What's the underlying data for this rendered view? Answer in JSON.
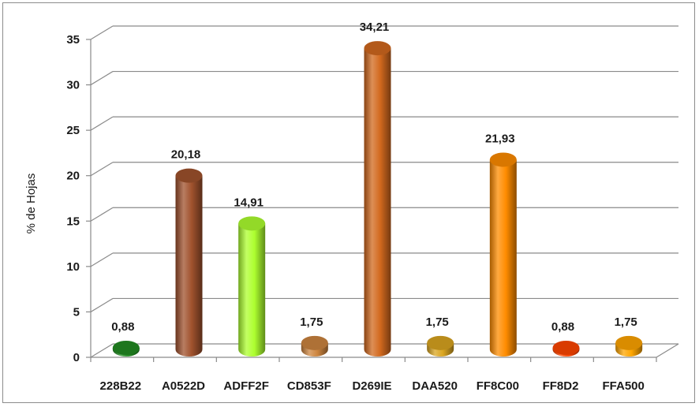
{
  "chart_data": {
    "type": "bar",
    "title": "",
    "xlabel": "",
    "ylabel": "% de Hojas",
    "ylim": [
      0,
      35
    ],
    "yticks": [
      "0",
      "5",
      "10",
      "15",
      "20",
      "25",
      "30",
      "35"
    ],
    "grid": true,
    "style": "3d-cylinder",
    "categories": [
      "228B22",
      "A0522D",
      "ADFF2F",
      "CD853F",
      "D269IE",
      "DAA520",
      "FF8C00",
      "FF8D2",
      "FFA500"
    ],
    "values": [
      0.88,
      20.18,
      14.91,
      1.75,
      34.21,
      1.75,
      21.93,
      0.88,
      1.75
    ],
    "value_labels": [
      "0,88",
      "20,18",
      "14,91",
      "1,75",
      "34,21",
      "1,75",
      "21,93",
      "0,88",
      "1,75"
    ],
    "colors": [
      "#228B22",
      "#A0522D",
      "#ADFF2F",
      "#CD853F",
      "#D2691E",
      "#DAA520",
      "#FF8C00",
      "#FF4500",
      "#FFA500"
    ]
  }
}
